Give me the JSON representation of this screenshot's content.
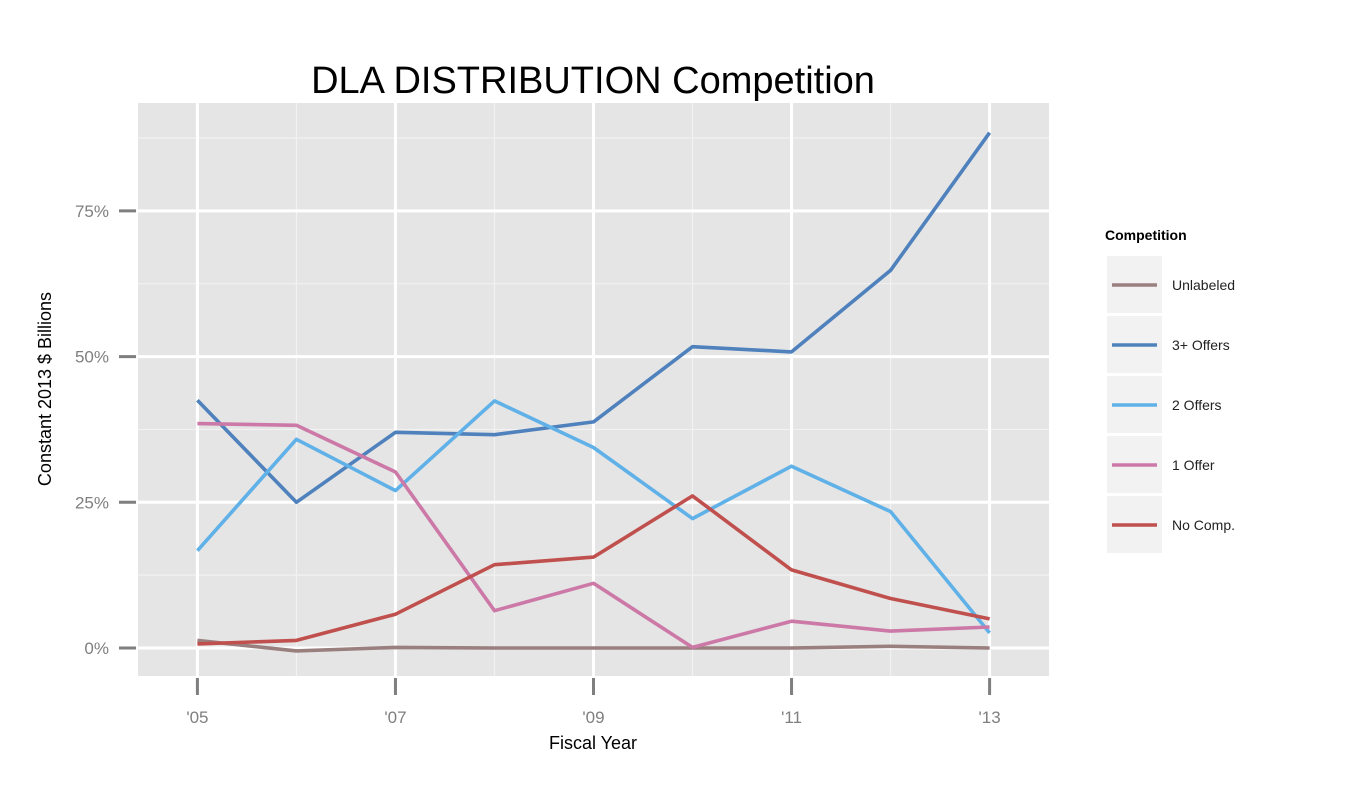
{
  "chart_data": {
    "type": "line",
    "title": "DLA DISTRIBUTION Competition",
    "xlabel": "Fiscal Year",
    "ylabel": "Constant 2013 $ Billions",
    "x": [
      2005,
      2006,
      2007,
      2008,
      2009,
      2010,
      2011,
      2012,
      2013
    ],
    "x_ticks": [
      {
        "value": 2005,
        "label": "'05"
      },
      {
        "value": 2007,
        "label": "'07"
      },
      {
        "value": 2009,
        "label": "'09"
      },
      {
        "value": 2011,
        "label": "'11"
      },
      {
        "value": 2013,
        "label": "'13"
      }
    ],
    "y_ticks": [
      {
        "value": 0,
        "label": "0%"
      },
      {
        "value": 25,
        "label": "25%"
      },
      {
        "value": 50,
        "label": "50%"
      },
      {
        "value": 75,
        "label": "75%"
      }
    ],
    "xlim": [
      2004.4,
      2013.6
    ],
    "ylim": [
      -4.8,
      93.5
    ],
    "grid": true,
    "legend_position": "right",
    "legend_title": "Competition",
    "series": [
      {
        "name": "Unlabeled",
        "color": "#9a7f7f",
        "values": [
          1.3,
          -0.5,
          0.1,
          0.0,
          0.0,
          0.0,
          0.0,
          0.3,
          0.0
        ]
      },
      {
        "name": "3+ Offers",
        "color": "#4f81bd",
        "values": [
          42.5,
          25.0,
          37.0,
          36.6,
          38.8,
          51.7,
          50.8,
          64.8,
          88.4
        ]
      },
      {
        "name": "2 Offers",
        "color": "#5fb1e8",
        "values": [
          16.7,
          35.8,
          27.0,
          42.4,
          34.4,
          22.2,
          31.2,
          23.4,
          2.6
        ]
      },
      {
        "name": "1 Offer",
        "color": "#cc79a7",
        "values": [
          38.5,
          38.2,
          30.2,
          6.4,
          11.1,
          0.1,
          4.6,
          2.9,
          3.6
        ]
      },
      {
        "name": "No Comp.",
        "color": "#c0504d",
        "values": [
          0.7,
          1.3,
          5.8,
          14.3,
          15.6,
          26.1,
          13.4,
          8.5,
          5.0
        ]
      }
    ]
  }
}
